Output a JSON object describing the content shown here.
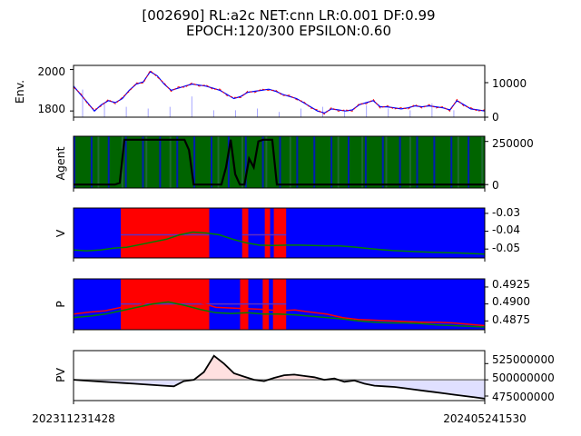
{
  "title": {
    "line1": "[002690] RL:a2c NET:cnn LR:0.001 DF:0.99",
    "line2": "EPOCH:120/300 EPSILON:0.60"
  },
  "colors": {
    "buy": "#ff0000",
    "sell": "#0000ff",
    "hold": "#006400",
    "value_line": "#008000",
    "pv_line": "#000000",
    "pv_gain_fill": "#ffe0e0",
    "pv_loss_fill": "#e0e0ff",
    "baseline": "#808080"
  },
  "chart_data": [
    {
      "type": "line",
      "panel": "env",
      "ylabel": "Env.",
      "left_ticks": [
        "2000",
        "1800"
      ],
      "right_ticks": [
        "10000",
        "0"
      ],
      "price_range": [
        1770,
        2020
      ],
      "volume_range": [
        0,
        15000
      ],
      "price_series": [
        1920,
        1880,
        1840,
        1800,
        1830,
        1850,
        1840,
        1860,
        1900,
        1930,
        1940,
        1990,
        1970,
        1930,
        1900,
        1910,
        1920,
        1930,
        1925,
        1920,
        1910,
        1900,
        1880,
        1860,
        1870,
        1890,
        1895,
        1900,
        1905,
        1895,
        1880,
        1870,
        1860,
        1840,
        1820,
        1800,
        1790,
        1810,
        1805,
        1800,
        1805,
        1830,
        1840,
        1850,
        1820,
        1820,
        1815,
        1810,
        1815,
        1825,
        1820,
        1825,
        1820,
        1815,
        1805,
        1850,
        1830,
        1810,
        1805,
        1800
      ],
      "volume_spikes": [
        8000,
        4000,
        3000,
        2500,
        3000,
        6000,
        2000,
        2000,
        2500,
        1500,
        2500,
        3000,
        2000,
        3500,
        2500,
        2000,
        4000,
        2000
      ]
    },
    {
      "type": "line",
      "panel": "agent",
      "ylabel": "Agent",
      "right_ticks": [
        "250000",
        "0"
      ],
      "range": [
        -20000,
        280000
      ],
      "series": [
        0,
        0,
        0,
        0,
        0,
        0,
        0,
        0,
        0,
        0,
        10000,
        260000,
        260000,
        260000,
        260000,
        260000,
        260000,
        260000,
        260000,
        260000,
        260000,
        260000,
        260000,
        260000,
        260000,
        200000,
        0,
        0,
        0,
        0,
        0,
        0,
        0,
        100000,
        260000,
        60000,
        0,
        0,
        150000,
        100000,
        250000,
        260000,
        260000,
        260000,
        0,
        0,
        0,
        0,
        0,
        0,
        0,
        0,
        0,
        0,
        0,
        0,
        0,
        0,
        0,
        0,
        0,
        0,
        0,
        0,
        0,
        0,
        0,
        0,
        0,
        0,
        0,
        0,
        0,
        0,
        0,
        0,
        0,
        0,
        0,
        0,
        0,
        0,
        0,
        0,
        0,
        0,
        0,
        0,
        0,
        0
      ]
    },
    {
      "type": "line",
      "panel": "value",
      "ylabel": "V",
      "right_ticks": [
        "-0.03",
        "-0.04",
        "-0.05"
      ],
      "range": [
        -0.055,
        -0.027
      ],
      "buy_spans": [
        [
          0.115,
          0.33
        ],
        [
          0.41,
          0.425
        ],
        [
          0.465,
          0.478
        ],
        [
          0.487,
          0.517
        ]
      ],
      "series_green": [
        -0.0505,
        -0.051,
        -0.0505,
        -0.0495,
        -0.049,
        -0.0475,
        -0.046,
        -0.0445,
        -0.042,
        -0.0405,
        -0.041,
        -0.042,
        -0.0445,
        -0.0465,
        -0.0478,
        -0.048,
        -0.0478,
        -0.0478,
        -0.048,
        -0.0482,
        -0.0482,
        -0.0488,
        -0.0495,
        -0.0502,
        -0.0508,
        -0.0512,
        -0.0515,
        -0.0518,
        -0.052,
        -0.0522,
        -0.0525,
        -0.0528
      ],
      "series_hold": -0.042
    },
    {
      "type": "line",
      "panel": "policy",
      "ylabel": "P",
      "right_ticks": [
        "0.4925",
        "0.4900",
        "0.4875"
      ],
      "range": [
        0.4862,
        0.4937
      ],
      "buy_spans": [
        [
          0.115,
          0.33
        ],
        [
          0.405,
          0.425
        ],
        [
          0.46,
          0.475
        ],
        [
          0.485,
          0.517
        ]
      ],
      "series_buy": [
        0.4885,
        0.4888,
        0.489,
        0.4895,
        0.4897,
        0.4905,
        0.491,
        0.4908,
        0.4902,
        0.4895,
        0.4894,
        0.4893,
        0.4892,
        0.489,
        0.4891,
        0.4888,
        0.4885,
        0.488,
        0.4877,
        0.4876,
        0.4875,
        0.4874,
        0.4873,
        0.4873,
        0.4872,
        0.487,
        0.4868
      ],
      "series_sell": [
        0.488,
        0.4882,
        0.4885,
        0.489,
        0.4895,
        0.49,
        0.4903,
        0.4898,
        0.4892,
        0.4887,
        0.4886,
        0.4887,
        0.4885,
        0.4885,
        0.4884,
        0.4882,
        0.488,
        0.4878,
        0.4875,
        0.4873,
        0.4872,
        0.4872,
        0.4871,
        0.4869,
        0.4868,
        0.4867,
        0.4866
      ],
      "hold_level": 0.49
    },
    {
      "type": "line",
      "panel": "pv",
      "ylabel": "PV",
      "right_ticks": [
        "525000000",
        "500000000",
        "475000000"
      ],
      "range": [
        468000000,
        545000000
      ],
      "baseline": 500000000,
      "series": [
        500000000,
        499000000,
        498000000,
        497000000,
        496000000,
        495000000,
        494000000,
        493000000,
        492000000,
        491000000,
        490000000,
        498000000,
        500000000,
        512000000,
        537000000,
        525000000,
        510000000,
        505000000,
        500000000,
        498000000,
        503000000,
        507000000,
        508000000,
        506000000,
        504000000,
        500000000,
        502000000,
        497000000,
        499000000,
        494000000,
        491000000,
        490000000,
        489000000,
        487000000,
        485000000,
        483000000,
        481000000,
        479000000,
        477000000,
        475000000,
        473000000,
        471000000
      ],
      "x_ticks": [
        "202311231428",
        "202405241530"
      ]
    }
  ]
}
